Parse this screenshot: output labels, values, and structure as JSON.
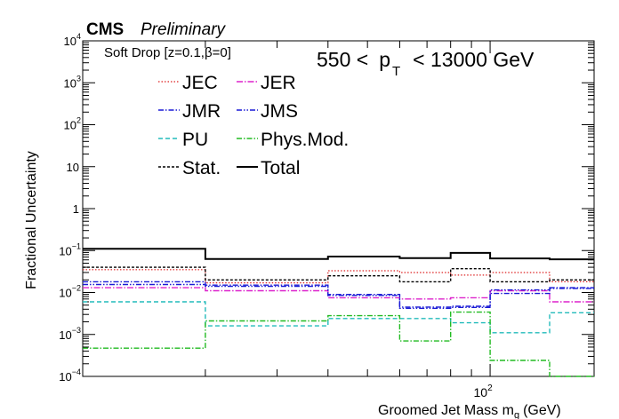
{
  "header": {
    "experiment": "CMS",
    "status": "Preliminary"
  },
  "annotations": {
    "algorithm": "Soft Drop [z=0.1,β=0]",
    "pt_range_left": "550 <",
    "pt_symbol": "p",
    "pt_subscript": "T",
    "pt_range_right": "< 13000 GeV"
  },
  "chart_data": {
    "type": "line",
    "title": "",
    "xlabel_main": "Groomed Jet Mass m",
    "xlabel_sub": "g",
    "xlabel_unit": "(GeV)",
    "ylabel": "Fractional Uncertainty",
    "xscale": "log",
    "yscale": "log",
    "xlim": [
      10,
      180
    ],
    "ylim": [
      0.0001,
      10000
    ],
    "legend_position": "top-left",
    "x_tick_labels": [
      {
        "base": "10",
        "exp": "2",
        "value": 100
      }
    ],
    "y_tick_labels": [
      {
        "value": 0.0001,
        "base": "10",
        "exp": "−4"
      },
      {
        "value": 0.001,
        "base": "10",
        "exp": "−3"
      },
      {
        "value": 0.01,
        "base": "10",
        "exp": "−2"
      },
      {
        "value": 0.1,
        "base": "10",
        "exp": "−1"
      },
      {
        "value": 1,
        "base": "1",
        "exp": ""
      },
      {
        "value": 10,
        "base": "10",
        "exp": ""
      },
      {
        "value": 100,
        "base": "10",
        "exp": "2"
      },
      {
        "value": 1000,
        "base": "10",
        "exp": "3"
      },
      {
        "value": 10000,
        "base": "10",
        "exp": "4"
      }
    ],
    "bin_edges": [
      10,
      20,
      40,
      60,
      80,
      100,
      140,
      180
    ],
    "series": [
      {
        "name": "JEC",
        "color": "#dd2222",
        "dash": "1.5,2",
        "width": 1.2,
        "values": [
          0.035,
          0.017,
          0.033,
          0.03,
          0.026,
          0.03,
          0.018
        ]
      },
      {
        "name": "JER",
        "color": "#dd22cc",
        "dash": "7,2,1.5,2",
        "width": 1.4,
        "values": [
          0.013,
          0.011,
          0.0075,
          0.007,
          0.0075,
          0.011,
          0.006
        ]
      },
      {
        "name": "JMR",
        "color": "#1a1ad6",
        "dash": "6,2,1.5,2",
        "width": 1.4,
        "values": [
          0.018,
          0.015,
          0.009,
          0.0045,
          0.0047,
          0.0095,
          0.013
        ]
      },
      {
        "name": "JMS",
        "color": "#1a1ad6",
        "dash": "6,2,1.5,2,1.5,2",
        "width": 1.4,
        "values": [
          0.0155,
          0.014,
          0.0085,
          0.0042,
          0.0044,
          0.0115,
          0.0125
        ]
      },
      {
        "name": "PU",
        "color": "#22bbbb",
        "dash": "5,3",
        "width": 1.4,
        "values": [
          0.006,
          0.0016,
          0.0024,
          0.0024,
          0.0019,
          0.0011,
          0.0033
        ]
      },
      {
        "name": "Phys.Mod.",
        "color": "#22bb22",
        "dash": "6,2,1.5,2",
        "width": 1.4,
        "values": [
          0.00047,
          0.0021,
          0.0028,
          0.0007,
          0.0034,
          0.00024,
          0.0001
        ]
      },
      {
        "name": "Stat.",
        "color": "#000000",
        "dash": "3,2",
        "width": 1.4,
        "values": [
          0.04,
          0.02,
          0.025,
          0.018,
          0.037,
          0.018,
          0.02
        ]
      },
      {
        "name": "Total",
        "color": "#000000",
        "dash": "",
        "width": 2.0,
        "values": [
          0.11,
          0.063,
          0.072,
          0.066,
          0.088,
          0.065,
          0.062
        ]
      }
    ]
  }
}
